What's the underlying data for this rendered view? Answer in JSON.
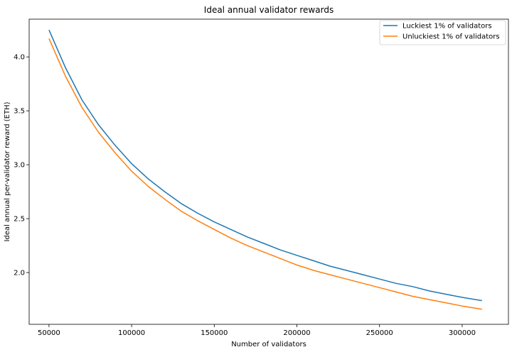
{
  "chart_data": {
    "type": "line",
    "title": "Ideal annual validator rewards",
    "xlabel": "Number of validators",
    "ylabel": "Ideal annual per-validator reward (ETH)",
    "xlim": [
      38000,
      328000
    ],
    "ylim": [
      1.52,
      4.35
    ],
    "xticks": [
      50000,
      100000,
      150000,
      200000,
      250000,
      300000
    ],
    "xtick_labels": [
      "50000",
      "100000",
      "150000",
      "200000",
      "250000",
      "300000"
    ],
    "yticks": [
      2.0,
      2.5,
      3.0,
      3.5,
      4.0
    ],
    "ytick_labels": [
      "2.0",
      "2.5",
      "3.0",
      "3.5",
      "4.0"
    ],
    "grid": false,
    "legend_position": "top-right",
    "x": [
      50000,
      60000,
      70000,
      80000,
      90000,
      100000,
      110000,
      120000,
      130000,
      140000,
      150000,
      160000,
      170000,
      180000,
      190000,
      200000,
      210000,
      220000,
      230000,
      240000,
      250000,
      260000,
      270000,
      280000,
      290000,
      300000,
      312000
    ],
    "series": [
      {
        "name": "Luckiest 1% of validators",
        "color": "#1f77b4",
        "values": [
          4.25,
          3.9,
          3.6,
          3.37,
          3.18,
          3.01,
          2.87,
          2.75,
          2.64,
          2.55,
          2.47,
          2.4,
          2.33,
          2.27,
          2.21,
          2.16,
          2.11,
          2.06,
          2.02,
          1.98,
          1.94,
          1.9,
          1.87,
          1.83,
          1.8,
          1.77,
          1.74
        ]
      },
      {
        "name": "Unluckiest 1% of validators",
        "color": "#ff7f0e",
        "values": [
          4.17,
          3.82,
          3.53,
          3.3,
          3.11,
          2.94,
          2.8,
          2.68,
          2.57,
          2.48,
          2.4,
          2.32,
          2.25,
          2.19,
          2.13,
          2.07,
          2.02,
          1.98,
          1.94,
          1.9,
          1.86,
          1.82,
          1.78,
          1.75,
          1.72,
          1.69,
          1.66
        ]
      }
    ]
  }
}
